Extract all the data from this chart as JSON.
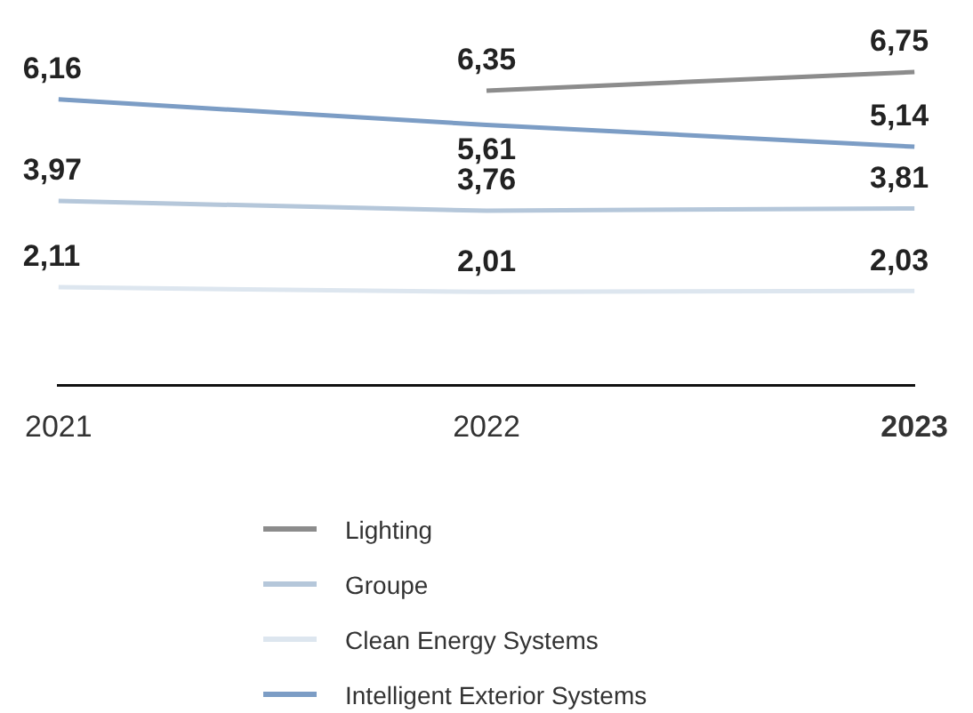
{
  "chart_data": {
    "type": "line",
    "categories": [
      "2021",
      "2022",
      "2023"
    ],
    "tick_labels": "x",
    "grid": false,
    "legend": "bottom",
    "marker": "none",
    "line_style": "solid",
    "series": [
      {
        "name": "Lighting",
        "color": "#8c8c8c",
        "values": [
          null,
          6.35,
          6.75
        ],
        "value_labels": [
          null,
          "6,35",
          "6,75"
        ]
      },
      {
        "name": "Groupe",
        "color": "#b5c7da",
        "values": [
          3.97,
          3.76,
          3.81
        ],
        "value_labels": [
          "3,97",
          "3,76",
          "3,81"
        ]
      },
      {
        "name": "Clean Energy Systems",
        "color": "#dde6ef",
        "values": [
          2.11,
          2.01,
          2.03
        ],
        "value_labels": [
          "2,11",
          "2,01",
          "2,03"
        ]
      },
      {
        "name": "Intelligent Exterior Systems",
        "color": "#7c9dc5",
        "values": [
          6.16,
          5.61,
          5.14
        ],
        "value_labels": [
          "6,16",
          "5,61",
          "5,14"
        ]
      }
    ]
  }
}
